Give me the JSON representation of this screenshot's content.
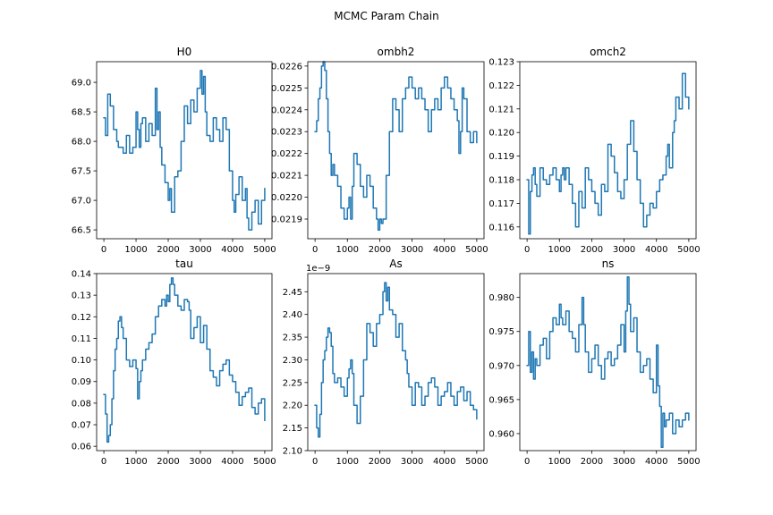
{
  "figure": {
    "suptitle": "MCMC Param Chain",
    "line_color": "#1f77b4"
  },
  "chart_data": [
    {
      "type": "line",
      "title": "H0",
      "xlabel": "",
      "ylabel": "",
      "xlim": [
        0,
        5000
      ],
      "ylim": [
        66.35,
        69.35
      ],
      "xticks": [
        0,
        1000,
        2000,
        3000,
        4000,
        5000
      ],
      "yticks": [
        66.5,
        67.0,
        67.5,
        68.0,
        68.5,
        69.0
      ],
      "ytick_labels": [
        "66.5",
        "67.0",
        "67.5",
        "68.0",
        "68.5",
        "69.0"
      ],
      "offset_text": "",
      "grid": false,
      "series": [
        {
          "x": [
            0,
            50,
            120,
            200,
            300,
            400,
            450,
            600,
            700,
            800,
            900,
            1000,
            1050,
            1100,
            1150,
            1200,
            1300,
            1400,
            1500,
            1600,
            1650,
            1700,
            1750,
            1800,
            1900,
            2000,
            2050,
            2100,
            2200,
            2300,
            2400,
            2500,
            2600,
            2700,
            2800,
            2900,
            3000,
            3050,
            3100,
            3150,
            3200,
            3300,
            3400,
            3500,
            3600,
            3700,
            3800,
            3900,
            4000,
            4050,
            4100,
            4200,
            4300,
            4400,
            4450,
            4500,
            4600,
            4700,
            4800,
            4900,
            5000
          ],
          "values": [
            68.4,
            68.1,
            68.8,
            68.6,
            68.2,
            68.0,
            67.9,
            67.8,
            68.1,
            67.8,
            67.9,
            68.5,
            68.2,
            67.9,
            68.3,
            68.4,
            68.0,
            68.3,
            68.1,
            68.9,
            68.2,
            68.5,
            67.9,
            67.6,
            67.3,
            67.0,
            67.2,
            66.8,
            67.4,
            67.5,
            68.0,
            68.6,
            68.3,
            68.7,
            68.5,
            68.9,
            69.2,
            68.8,
            69.1,
            68.5,
            68.1,
            68.0,
            68.4,
            68.2,
            68.0,
            68.4,
            68.2,
            67.5,
            67.0,
            66.8,
            67.1,
            67.4,
            67.0,
            67.2,
            66.7,
            66.5,
            66.8,
            67.0,
            66.6,
            67.0,
            67.2
          ]
        }
      ]
    },
    {
      "type": "line",
      "title": "ombh2",
      "xlabel": "",
      "ylabel": "",
      "xlim": [
        0,
        5000
      ],
      "ylim": [
        0.02181,
        0.02262
      ],
      "xticks": [
        0,
        1000,
        2000,
        3000,
        4000,
        5000
      ],
      "yticks": [
        0.0219,
        0.022,
        0.0221,
        0.0222,
        0.0223,
        0.0224,
        0.0225,
        0.0226
      ],
      "ytick_labels": [
        "0.0219",
        "0.0220",
        "0.0221",
        "0.0222",
        "0.0223",
        "0.0224",
        "0.0225",
        "0.0226"
      ],
      "offset_text": "",
      "grid": false,
      "series": [
        {
          "x": [
            0,
            50,
            100,
            150,
            200,
            250,
            300,
            350,
            400,
            450,
            500,
            550,
            600,
            700,
            800,
            900,
            1000,
            1050,
            1100,
            1150,
            1200,
            1300,
            1400,
            1500,
            1600,
            1700,
            1800,
            1900,
            1950,
            2000,
            2050,
            2100,
            2200,
            2300,
            2400,
            2500,
            2600,
            2700,
            2800,
            2900,
            3000,
            3100,
            3200,
            3300,
            3400,
            3500,
            3600,
            3700,
            3800,
            3900,
            4000,
            4100,
            4200,
            4300,
            4400,
            4450,
            4500,
            4550,
            4600,
            4700,
            4800,
            4900,
            5000
          ],
          "values": [
            0.0223,
            0.02235,
            0.02245,
            0.0225,
            0.0226,
            0.02262,
            0.02258,
            0.02245,
            0.0223,
            0.0222,
            0.0221,
            0.02215,
            0.0221,
            0.02205,
            0.02195,
            0.0219,
            0.02195,
            0.022,
            0.0219,
            0.02205,
            0.0222,
            0.02215,
            0.02205,
            0.022,
            0.0221,
            0.02205,
            0.02195,
            0.0219,
            0.02185,
            0.0219,
            0.02188,
            0.0219,
            0.0221,
            0.0223,
            0.02245,
            0.0224,
            0.0223,
            0.02245,
            0.0225,
            0.02255,
            0.0225,
            0.02245,
            0.0225,
            0.02245,
            0.0224,
            0.0223,
            0.0224,
            0.02245,
            0.0224,
            0.0225,
            0.02255,
            0.0225,
            0.02245,
            0.0224,
            0.02235,
            0.0222,
            0.0223,
            0.0225,
            0.02245,
            0.0223,
            0.02225,
            0.0223,
            0.02225
          ]
        }
      ]
    },
    {
      "type": "line",
      "title": "omch2",
      "xlabel": "",
      "ylabel": "",
      "xlim": [
        0,
        5000
      ],
      "ylim": [
        0.1155,
        0.123
      ],
      "xticks": [
        0,
        1000,
        2000,
        3000,
        4000,
        5000
      ],
      "yticks": [
        0.116,
        0.117,
        0.118,
        0.119,
        0.12,
        0.121,
        0.122,
        0.123
      ],
      "ytick_labels": [
        "0.116",
        "0.117",
        "0.118",
        "0.119",
        "0.120",
        "0.121",
        "0.122",
        "0.123"
      ],
      "offset_text": "",
      "grid": false,
      "series": [
        {
          "x": [
            0,
            50,
            100,
            150,
            200,
            250,
            300,
            400,
            500,
            600,
            700,
            800,
            900,
            1000,
            1050,
            1100,
            1150,
            1200,
            1300,
            1400,
            1500,
            1600,
            1700,
            1800,
            1900,
            2000,
            2100,
            2200,
            2300,
            2400,
            2500,
            2600,
            2700,
            2800,
            2900,
            3000,
            3100,
            3200,
            3300,
            3400,
            3500,
            3600,
            3700,
            3800,
            3900,
            4000,
            4100,
            4200,
            4300,
            4350,
            4400,
            4500,
            4550,
            4600,
            4700,
            4800,
            4900,
            5000
          ],
          "values": [
            0.118,
            0.1157,
            0.1175,
            0.1182,
            0.1185,
            0.1178,
            0.1173,
            0.1185,
            0.118,
            0.1178,
            0.1182,
            0.1185,
            0.118,
            0.1175,
            0.1182,
            0.1185,
            0.118,
            0.1185,
            0.1178,
            0.117,
            0.116,
            0.1175,
            0.1168,
            0.1185,
            0.118,
            0.1175,
            0.117,
            0.1165,
            0.1178,
            0.1175,
            0.1195,
            0.119,
            0.1183,
            0.1175,
            0.1172,
            0.118,
            0.1195,
            0.1205,
            0.1192,
            0.118,
            0.117,
            0.116,
            0.1165,
            0.117,
            0.1168,
            0.1175,
            0.118,
            0.1182,
            0.119,
            0.1195,
            0.1185,
            0.12,
            0.1205,
            0.1215,
            0.121,
            0.1225,
            0.1215,
            0.121
          ]
        }
      ]
    },
    {
      "type": "line",
      "title": "tau",
      "xlabel": "",
      "ylabel": "",
      "xlim": [
        0,
        5000
      ],
      "ylim": [
        0.058,
        0.14
      ],
      "xticks": [
        0,
        1000,
        2000,
        3000,
        4000,
        5000
      ],
      "yticks": [
        0.06,
        0.07,
        0.08,
        0.09,
        0.1,
        0.11,
        0.12,
        0.13,
        0.14
      ],
      "ytick_labels": [
        "0.06",
        "0.07",
        "0.08",
        "0.09",
        "0.10",
        "0.11",
        "0.12",
        "0.13",
        "0.14"
      ],
      "offset_text": "",
      "grid": false,
      "series": [
        {
          "x": [
            0,
            50,
            100,
            150,
            200,
            250,
            300,
            350,
            400,
            450,
            500,
            550,
            600,
            700,
            800,
            900,
            1000,
            1050,
            1100,
            1150,
            1200,
            1300,
            1400,
            1500,
            1600,
            1700,
            1800,
            1900,
            1950,
            2000,
            2050,
            2100,
            2150,
            2200,
            2300,
            2400,
            2500,
            2600,
            2650,
            2700,
            2800,
            2900,
            3000,
            3100,
            3200,
            3300,
            3400,
            3500,
            3600,
            3700,
            3800,
            3900,
            4000,
            4100,
            4200,
            4300,
            4400,
            4500,
            4600,
            4700,
            4800,
            4900,
            5000
          ],
          "values": [
            0.084,
            0.075,
            0.062,
            0.065,
            0.07,
            0.082,
            0.095,
            0.105,
            0.11,
            0.118,
            0.12,
            0.115,
            0.11,
            0.1,
            0.097,
            0.1,
            0.096,
            0.082,
            0.09,
            0.095,
            0.1,
            0.105,
            0.108,
            0.112,
            0.12,
            0.125,
            0.128,
            0.125,
            0.13,
            0.127,
            0.135,
            0.138,
            0.135,
            0.13,
            0.125,
            0.123,
            0.128,
            0.127,
            0.123,
            0.11,
            0.115,
            0.12,
            0.108,
            0.116,
            0.105,
            0.095,
            0.092,
            0.088,
            0.095,
            0.098,
            0.1,
            0.093,
            0.09,
            0.085,
            0.079,
            0.083,
            0.085,
            0.087,
            0.078,
            0.075,
            0.08,
            0.082,
            0.072
          ]
        }
      ]
    },
    {
      "type": "line",
      "title": "As",
      "xlabel": "",
      "ylabel": "",
      "xlim": [
        0,
        5000
      ],
      "ylim": [
        2.1,
        2.49
      ],
      "xticks": [
        0,
        1000,
        2000,
        3000,
        4000,
        5000
      ],
      "yticks": [
        2.1,
        2.15,
        2.2,
        2.25,
        2.3,
        2.35,
        2.4,
        2.45
      ],
      "ytick_labels": [
        "2.10",
        "2.15",
        "2.20",
        "2.25",
        "2.30",
        "2.35",
        "2.40",
        "2.45"
      ],
      "offset_text": "1e−9",
      "grid": false,
      "series": [
        {
          "x": [
            0,
            50,
            100,
            150,
            200,
            250,
            300,
            350,
            400,
            450,
            500,
            550,
            600,
            700,
            800,
            900,
            1000,
            1050,
            1100,
            1150,
            1200,
            1300,
            1400,
            1500,
            1600,
            1700,
            1800,
            1900,
            2000,
            2100,
            2150,
            2200,
            2250,
            2300,
            2400,
            2500,
            2600,
            2700,
            2800,
            2850,
            2900,
            3000,
            3100,
            3200,
            3300,
            3400,
            3500,
            3600,
            3700,
            3800,
            3900,
            4000,
            4100,
            4200,
            4300,
            4400,
            4500,
            4600,
            4700,
            4800,
            4900,
            5000
          ],
          "values": [
            2.2,
            2.15,
            2.13,
            2.18,
            2.25,
            2.3,
            2.32,
            2.35,
            2.37,
            2.36,
            2.33,
            2.27,
            2.25,
            2.26,
            2.24,
            2.22,
            2.26,
            2.28,
            2.3,
            2.27,
            2.2,
            2.16,
            2.22,
            2.3,
            2.38,
            2.36,
            2.33,
            2.38,
            2.4,
            2.45,
            2.47,
            2.43,
            2.46,
            2.41,
            2.4,
            2.35,
            2.38,
            2.32,
            2.3,
            2.27,
            2.24,
            2.2,
            2.25,
            2.24,
            2.2,
            2.22,
            2.25,
            2.26,
            2.24,
            2.2,
            2.22,
            2.23,
            2.25,
            2.22,
            2.2,
            2.23,
            2.24,
            2.21,
            2.23,
            2.2,
            2.19,
            2.17
          ]
        }
      ]
    },
    {
      "type": "line",
      "title": "ns",
      "xlabel": "",
      "ylabel": "",
      "xlim": [
        0,
        5000
      ],
      "ylim": [
        0.9575,
        0.9835
      ],
      "xticks": [
        0,
        1000,
        2000,
        3000,
        4000,
        5000
      ],
      "yticks": [
        0.96,
        0.965,
        0.97,
        0.975,
        0.98
      ],
      "ytick_labels": [
        "0.960",
        "0.965",
        "0.970",
        "0.975",
        "0.980"
      ],
      "offset_text": "",
      "grid": false,
      "series": [
        {
          "x": [
            0,
            50,
            100,
            150,
            200,
            250,
            300,
            400,
            500,
            600,
            700,
            800,
            900,
            1000,
            1050,
            1100,
            1200,
            1300,
            1400,
            1500,
            1600,
            1700,
            1750,
            1800,
            1900,
            2000,
            2100,
            2200,
            2300,
            2400,
            2500,
            2600,
            2700,
            2800,
            2900,
            3000,
            3050,
            3100,
            3150,
            3200,
            3300,
            3400,
            3500,
            3600,
            3700,
            3800,
            3900,
            4000,
            4050,
            4100,
            4150,
            4200,
            4250,
            4300,
            4400,
            4500,
            4600,
            4700,
            4800,
            4900,
            5000
          ],
          "values": [
            0.97,
            0.975,
            0.969,
            0.972,
            0.968,
            0.971,
            0.97,
            0.973,
            0.974,
            0.971,
            0.975,
            0.977,
            0.976,
            0.979,
            0.977,
            0.976,
            0.978,
            0.975,
            0.974,
            0.972,
            0.976,
            0.98,
            0.976,
            0.972,
            0.969,
            0.971,
            0.973,
            0.97,
            0.968,
            0.971,
            0.972,
            0.97,
            0.971,
            0.973,
            0.976,
            0.972,
            0.978,
            0.983,
            0.979,
            0.975,
            0.977,
            0.972,
            0.969,
            0.97,
            0.971,
            0.968,
            0.966,
            0.973,
            0.967,
            0.964,
            0.958,
            0.963,
            0.961,
            0.962,
            0.963,
            0.96,
            0.962,
            0.961,
            0.962,
            0.963,
            0.962
          ]
        }
      ]
    }
  ]
}
